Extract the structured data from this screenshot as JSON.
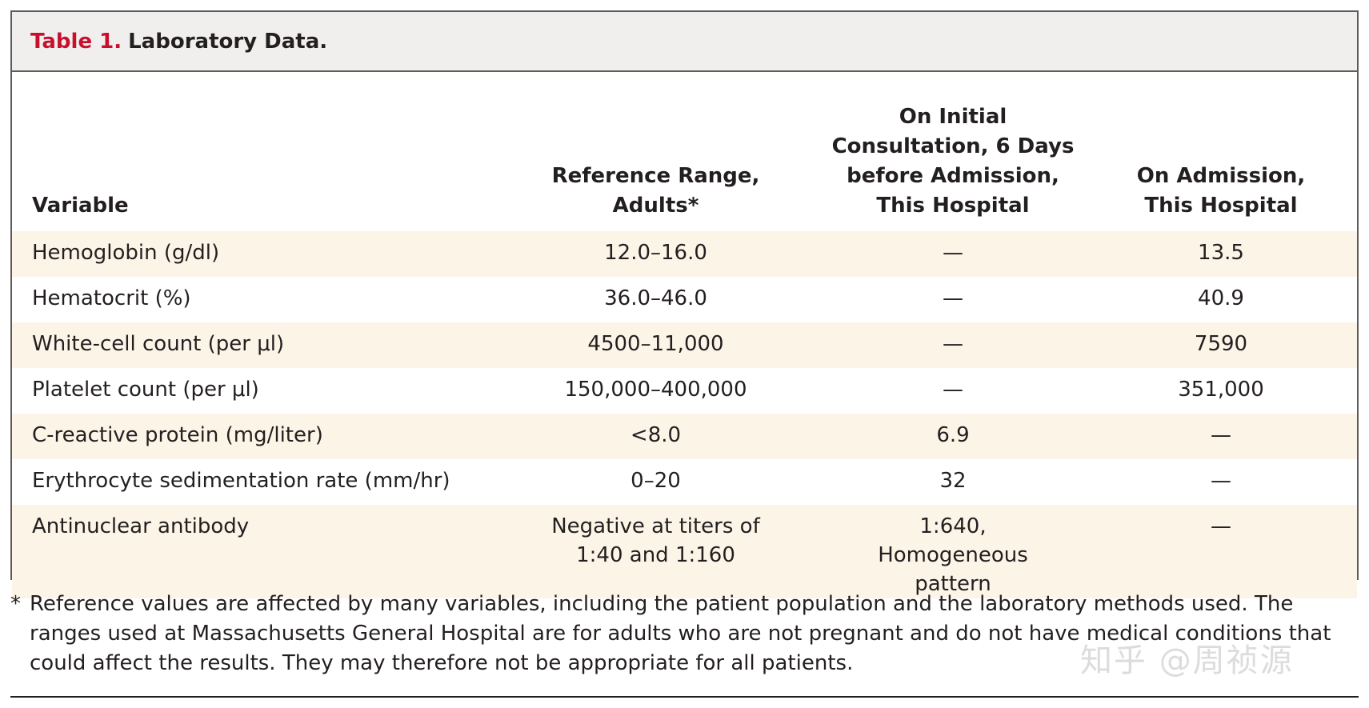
{
  "table": {
    "label": "Table 1.",
    "title": "Laboratory Data.",
    "columns": [
      "Variable",
      "Reference Range, Adults*",
      "On Initial Consultation, 6 Days before Admission, This Hospital",
      "On Admission, This Hospital"
    ],
    "rows": [
      {
        "variable": "Hemoglobin (g/dl)",
        "reference": "12.0–16.0",
        "initial": "—",
        "admission": "13.5"
      },
      {
        "variable": "Hematocrit (%)",
        "reference": "36.0–46.0",
        "initial": "—",
        "admission": "40.9"
      },
      {
        "variable": "White-cell count (per μl)",
        "reference": "4500–11,000",
        "initial": "—",
        "admission": "7590"
      },
      {
        "variable": "Platelet count (per μl)",
        "reference": "150,000–400,000",
        "initial": "—",
        "admission": "351,000"
      },
      {
        "variable": "C-reactive protein (mg/liter)",
        "reference": "<8.0",
        "initial": "6.9",
        "admission": "—"
      },
      {
        "variable": "Erythrocyte sedimentation rate (mm/hr)",
        "reference": "0–20",
        "initial": "32",
        "admission": "—"
      },
      {
        "variable": "Antinuclear antibody",
        "reference": "Negative at titers of 1:40 and 1:160",
        "initial": "1:640, Homogeneous pattern",
        "admission": "—"
      }
    ]
  },
  "footnote": {
    "mark": "*",
    "text": "Reference values are affected by many variables, including the patient population and the laboratory methods used. The ranges used at Massachusetts General Hospital are for adults who are not pregnant and do not have medical conditions that could affect the results. They may therefore not be appropriate for all patients."
  },
  "watermark": "知乎 @周祯源",
  "colors": {
    "label_red": "#c8102e",
    "shaded_row": "#fdf4e8",
    "caption_bg": "#f1efee"
  }
}
